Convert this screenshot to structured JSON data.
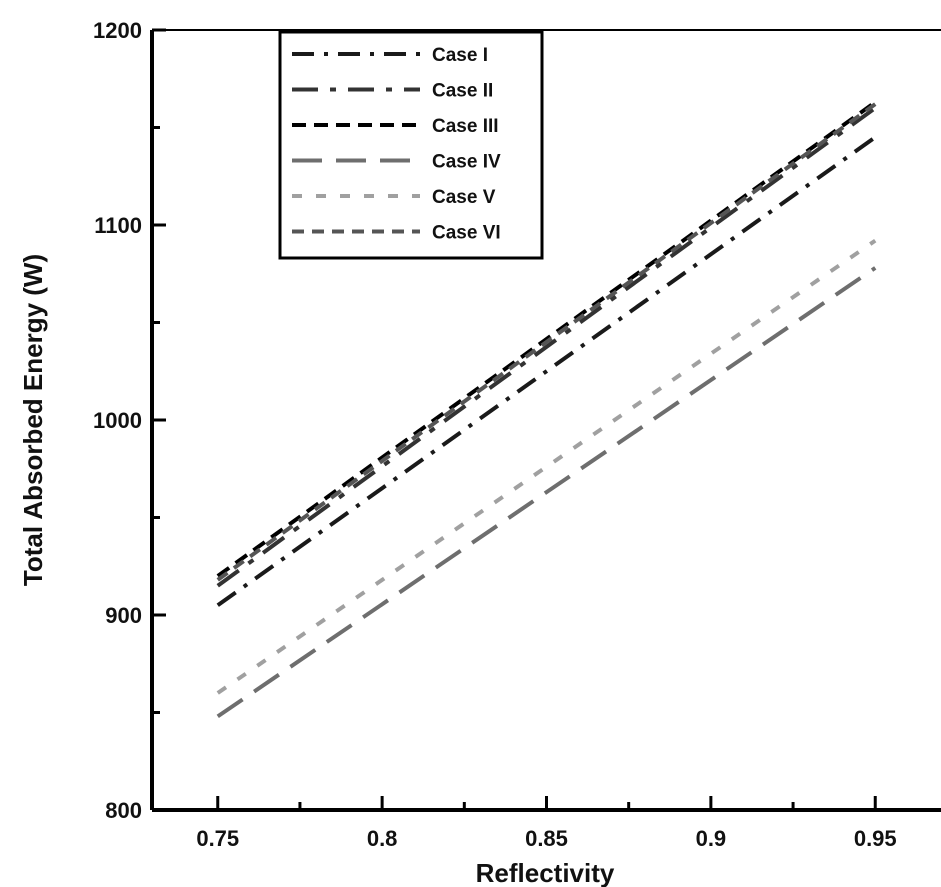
{
  "chart_data": {
    "type": "line",
    "xlabel": "Reflectivity",
    "ylabel": "Total Absorbed Energy (W)",
    "xlim": [
      0.73,
      0.97
    ],
    "ylim": [
      800,
      1200
    ],
    "xticks": [
      0.75,
      0.8,
      0.85,
      0.9,
      0.95
    ],
    "xtick_labels": [
      "0.75",
      "0.8",
      "0.85",
      "0.9",
      "0.95"
    ],
    "yticks": [
      800,
      900,
      1000,
      1100,
      1200
    ],
    "ytick_labels": [
      "800",
      "900",
      "1000",
      "1100",
      "1200"
    ],
    "grid": false,
    "legend_position": "top-left",
    "series": [
      {
        "name": "Case I",
        "x": [
          0.75,
          0.95
        ],
        "y": [
          905,
          1145
        ],
        "color": "#1a1a1a",
        "dash": "22,10,4,10"
      },
      {
        "name": "Case II",
        "x": [
          0.75,
          0.95
        ],
        "y": [
          915,
          1160
        ],
        "color": "#333333",
        "dash": "26,12,6,12"
      },
      {
        "name": "Case III",
        "x": [
          0.75,
          0.95
        ],
        "y": [
          920,
          1163
        ],
        "color": "#000000",
        "dash": "14,8"
      },
      {
        "name": "Case IV",
        "x": [
          0.75,
          0.95
        ],
        "y": [
          848,
          1078
        ],
        "color": "#6e6e6e",
        "dash": "30,14"
      },
      {
        "name": "Case V",
        "x": [
          0.75,
          0.95
        ],
        "y": [
          860,
          1092
        ],
        "color": "#a0a0a0",
        "dash": "10,14"
      },
      {
        "name": "Case VI",
        "x": [
          0.75,
          0.95
        ],
        "y": [
          918,
          1162
        ],
        "color": "#555555",
        "dash": "12,8"
      }
    ]
  }
}
